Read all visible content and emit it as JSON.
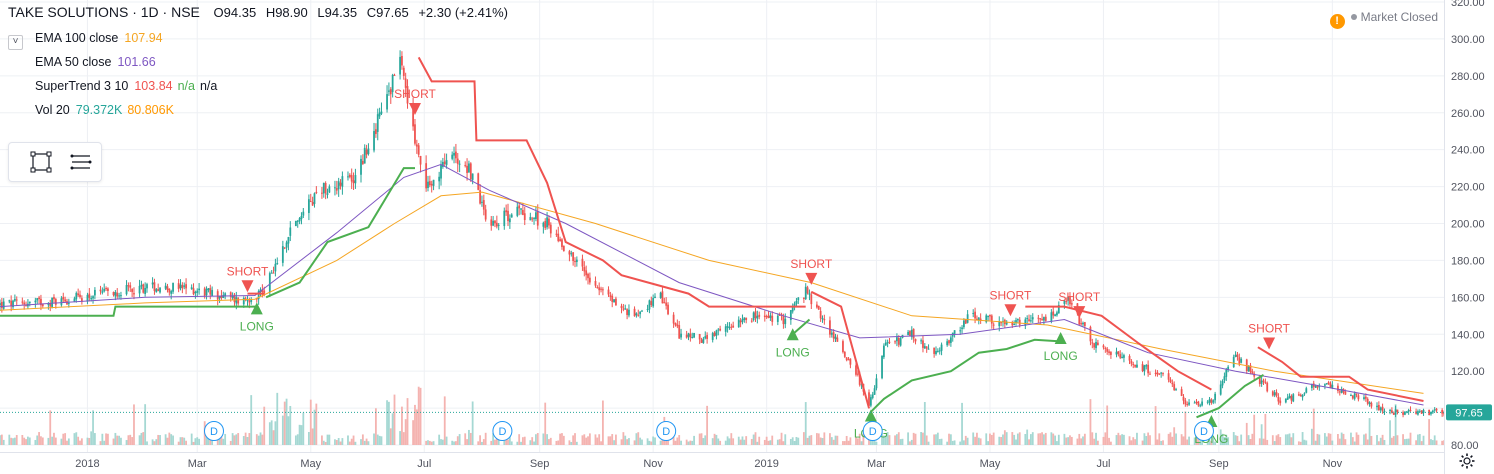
{
  "header": {
    "symbol": "TAKE SOLUTIONS · 1D · NSE",
    "open_label": "O",
    "open": "94.35",
    "high_label": "H",
    "high": "98.90",
    "low_label": "L",
    "low": "94.35",
    "close_label": "C",
    "close": "97.65",
    "change": "+2.30 (+2.41%)"
  },
  "indicators": [
    {
      "name": "EMA 100 close",
      "values": [
        "107.94"
      ],
      "colors": [
        "#f5a623"
      ]
    },
    {
      "name": "EMA 50 close",
      "values": [
        "101.66"
      ],
      "colors": [
        "#7e57c2"
      ]
    },
    {
      "name": "SuperTrend 3 10",
      "values": [
        "103.84",
        "n/a",
        "n/a"
      ],
      "colors": [
        "#ef5350",
        "#4caf50",
        "#131722"
      ]
    },
    {
      "name": "Vol 20",
      "values": [
        "79.372K",
        "80.806K"
      ],
      "colors": [
        "#26a69a",
        "#ff9800"
      ]
    }
  ],
  "collapse_glyph": "˅",
  "status": {
    "text": "Market Closed",
    "warn_glyph": "!"
  },
  "price_label": "97.65",
  "colors": {
    "up": "#26a69a",
    "down": "#ef5350",
    "ema100": "#f5a623",
    "ema50": "#7e57c2",
    "st_up": "#4caf50",
    "st_down": "#ef5350",
    "vol_up": "#a5d8d3",
    "vol_down": "#f4b3b0",
    "grid": "#eef0f4",
    "axis_text": "#50535e",
    "price_tag": "#26a69a"
  },
  "chart_data": {
    "type": "candlestick",
    "y_axis": {
      "min": 80,
      "max": 320,
      "ticks": [
        80,
        100,
        120,
        140,
        160,
        180,
        200,
        220,
        240,
        260,
        280,
        300,
        320
      ],
      "tick_labels": [
        "80.00",
        "100.00",
        "120.00",
        "140.00",
        "160.00",
        "180.00",
        "200.00",
        "220.00",
        "240.00",
        "260.00",
        "280.00",
        "300.00",
        "320.00"
      ]
    },
    "x_axis": {
      "ticks": [
        {
          "date": "2018-01-01",
          "label": "2018"
        },
        {
          "date": "2018-03-01",
          "label": "Mar"
        },
        {
          "date": "2018-05-01",
          "label": "May"
        },
        {
          "date": "2018-07-01",
          "label": "Jul"
        },
        {
          "date": "2018-09-01",
          "label": "Sep"
        },
        {
          "date": "2018-11-01",
          "label": "Nov"
        },
        {
          "date": "2019-01-01",
          "label": "2019"
        },
        {
          "date": "2019-03-01",
          "label": "Mar"
        },
        {
          "date": "2019-05-01",
          "label": "May"
        },
        {
          "date": "2019-07-01",
          "label": "Jul"
        },
        {
          "date": "2019-09-01",
          "label": "Sep"
        },
        {
          "date": "2019-11-01",
          "label": "Nov"
        }
      ],
      "start": "2017-11-15",
      "end": "2019-12-31"
    },
    "close_path": [
      [
        "2017-11-15",
        156
      ],
      [
        "2017-12-15",
        158
      ],
      [
        "2018-01-10",
        162
      ],
      [
        "2018-02-05",
        166
      ],
      [
        "2018-03-01",
        164
      ],
      [
        "2018-03-25",
        158
      ],
      [
        "2018-04-06",
        164
      ],
      [
        "2018-04-20",
        195
      ],
      [
        "2018-05-05",
        218
      ],
      [
        "2018-05-25",
        225
      ],
      [
        "2018-06-10",
        265
      ],
      [
        "2018-06-18",
        290
      ],
      [
        "2018-06-24",
        255
      ],
      [
        "2018-07-02",
        218
      ],
      [
        "2018-07-15",
        238
      ],
      [
        "2018-07-25",
        230
      ],
      [
        "2018-08-05",
        200
      ],
      [
        "2018-08-20",
        207
      ],
      [
        "2018-09-05",
        200
      ],
      [
        "2018-09-20",
        180
      ],
      [
        "2018-10-05",
        163
      ],
      [
        "2018-10-20",
        150
      ],
      [
        "2018-11-05",
        160
      ],
      [
        "2018-11-15",
        140
      ],
      [
        "2018-12-01",
        137
      ],
      [
        "2018-12-20",
        150
      ],
      [
        "2019-01-10",
        148
      ],
      [
        "2019-01-22",
        163
      ],
      [
        "2019-02-05",
        140
      ],
      [
        "2019-02-18",
        120
      ],
      [
        "2019-02-25",
        100
      ],
      [
        "2019-03-05",
        133
      ],
      [
        "2019-03-20",
        140
      ],
      [
        "2019-04-01",
        128
      ],
      [
        "2019-04-20",
        150
      ],
      [
        "2019-05-10",
        145
      ],
      [
        "2019-06-01",
        148
      ],
      [
        "2019-06-12",
        158
      ],
      [
        "2019-06-25",
        135
      ],
      [
        "2019-07-15",
        125
      ],
      [
        "2019-08-01",
        118
      ],
      [
        "2019-08-15",
        102
      ],
      [
        "2019-08-28",
        104
      ],
      [
        "2019-09-10",
        128
      ],
      [
        "2019-09-20",
        118
      ],
      [
        "2019-10-05",
        103
      ],
      [
        "2019-10-25",
        113
      ],
      [
        "2019-11-10",
        108
      ],
      [
        "2019-12-01",
        98
      ],
      [
        "2019-12-20",
        97.65
      ]
    ],
    "ema100_path": [
      [
        "2017-11-15",
        153
      ],
      [
        "2018-02-01",
        157
      ],
      [
        "2018-04-01",
        159
      ],
      [
        "2018-05-15",
        180
      ],
      [
        "2018-06-15",
        200
      ],
      [
        "2018-07-10",
        215
      ],
      [
        "2018-08-01",
        217
      ],
      [
        "2018-10-01",
        200
      ],
      [
        "2018-12-01",
        180
      ],
      [
        "2019-01-25",
        168
      ],
      [
        "2019-03-20",
        150
      ],
      [
        "2019-06-01",
        145
      ],
      [
        "2019-08-01",
        132
      ],
      [
        "2019-10-01",
        120
      ],
      [
        "2019-12-20",
        107.94
      ]
    ],
    "ema50_path": [
      [
        "2017-11-15",
        155
      ],
      [
        "2018-02-01",
        160
      ],
      [
        "2018-04-01",
        161
      ],
      [
        "2018-05-15",
        195
      ],
      [
        "2018-06-20",
        225
      ],
      [
        "2018-07-10",
        232
      ],
      [
        "2018-08-05",
        218
      ],
      [
        "2018-09-15",
        200
      ],
      [
        "2018-11-15",
        168
      ],
      [
        "2019-01-10",
        150
      ],
      [
        "2019-02-20",
        138
      ],
      [
        "2019-04-15",
        140
      ],
      [
        "2019-06-10",
        148
      ],
      [
        "2019-07-25",
        130
      ],
      [
        "2019-09-10",
        120
      ],
      [
        "2019-10-20",
        113
      ],
      [
        "2019-12-20",
        101.66
      ]
    ],
    "supertrend_segments": [
      {
        "dir": "up",
        "points": [
          [
            "2017-11-15",
            150
          ],
          [
            "2018-01-15",
            150
          ],
          [
            "2018-01-16",
            155
          ],
          [
            "2018-04-02",
            155
          ]
        ]
      },
      {
        "dir": "down",
        "points": [
          [
            "2018-03-28",
            162
          ],
          [
            "2018-04-06",
            162
          ]
        ]
      },
      {
        "dir": "up",
        "points": [
          [
            "2018-04-07",
            160
          ],
          [
            "2018-04-25",
            168
          ],
          [
            "2018-05-10",
            190
          ],
          [
            "2018-06-01",
            198
          ],
          [
            "2018-06-20",
            230
          ],
          [
            "2018-06-26",
            230
          ]
        ]
      },
      {
        "dir": "down",
        "points": [
          [
            "2018-06-28",
            290
          ],
          [
            "2018-07-05",
            277
          ],
          [
            "2018-07-28",
            277
          ],
          [
            "2018-07-29",
            245
          ],
          [
            "2018-08-25",
            245
          ],
          [
            "2018-09-05",
            222
          ],
          [
            "2018-09-15",
            190
          ],
          [
            "2018-10-05",
            180
          ],
          [
            "2018-10-15",
            172
          ],
          [
            "2018-11-20",
            162
          ],
          [
            "2018-12-01",
            155
          ],
          [
            "2019-01-10",
            155
          ],
          [
            "2019-01-22",
            155
          ]
        ]
      },
      {
        "dir": "up",
        "points": [
          [
            "2019-01-15",
            140
          ],
          [
            "2019-01-24",
            148
          ]
        ]
      },
      {
        "dir": "down",
        "points": [
          [
            "2019-01-25",
            163
          ],
          [
            "2019-02-10",
            155
          ],
          [
            "2019-02-25",
            100
          ]
        ]
      },
      {
        "dir": "up",
        "points": [
          [
            "2019-02-26",
            98
          ],
          [
            "2019-03-05",
            105
          ],
          [
            "2019-03-20",
            115
          ],
          [
            "2019-04-10",
            120
          ],
          [
            "2019-04-25",
            130
          ],
          [
            "2019-05-10",
            132
          ],
          [
            "2019-05-25",
            137
          ],
          [
            "2019-06-10",
            136
          ]
        ]
      },
      {
        "dir": "down",
        "points": [
          [
            "2019-05-20",
            155
          ],
          [
            "2019-06-10",
            155
          ],
          [
            "2019-06-30",
            150
          ],
          [
            "2019-07-20",
            135
          ],
          [
            "2019-08-10",
            120
          ],
          [
            "2019-08-28",
            110
          ]
        ]
      },
      {
        "dir": "up",
        "points": [
          [
            "2019-08-20",
            95
          ],
          [
            "2019-09-01",
            100
          ],
          [
            "2019-09-15",
            112
          ],
          [
            "2019-09-25",
            118
          ]
        ]
      },
      {
        "dir": "down",
        "points": [
          [
            "2019-09-22",
            133
          ],
          [
            "2019-10-05",
            125
          ],
          [
            "2019-10-15",
            117
          ],
          [
            "2019-11-10",
            117
          ],
          [
            "2019-11-20",
            110
          ],
          [
            "2019-12-20",
            103.84
          ]
        ]
      }
    ],
    "signals": [
      {
        "type": "short",
        "label": "SHORT",
        "date": "2018-03-28",
        "price": 166
      },
      {
        "type": "long",
        "label": "LONG",
        "date": "2018-04-02",
        "price": 154
      },
      {
        "type": "short",
        "label": "SHORT",
        "date": "2018-06-26",
        "price": 262
      },
      {
        "type": "short",
        "label": "SHORT",
        "date": "2019-01-25",
        "price": 170
      },
      {
        "type": "long",
        "label": "LONG",
        "date": "2019-01-15",
        "price": 140
      },
      {
        "type": "long",
        "label": "LONG",
        "date": "2019-02-26",
        "price": 96
      },
      {
        "type": "short",
        "label": "SHORT",
        "date": "2019-05-12",
        "price": 153
      },
      {
        "type": "long",
        "label": "LONG",
        "date": "2019-06-08",
        "price": 138
      },
      {
        "type": "short",
        "label": "SHORT",
        "date": "2019-06-18",
        "price": 152
      },
      {
        "type": "long",
        "label": "LONG",
        "date": "2019-08-28",
        "price": 93
      },
      {
        "type": "short",
        "label": "SHORT",
        "date": "2019-09-28",
        "price": 135
      }
    ],
    "dividend_markers": [
      {
        "label": "D",
        "date": "2018-03-10"
      },
      {
        "label": "D",
        "date": "2018-08-12"
      },
      {
        "label": "D",
        "date": "2018-11-08"
      },
      {
        "label": "D",
        "date": "2019-02-27"
      },
      {
        "label": "D",
        "date": "2019-08-24"
      }
    ],
    "last_price": 97.65
  }
}
